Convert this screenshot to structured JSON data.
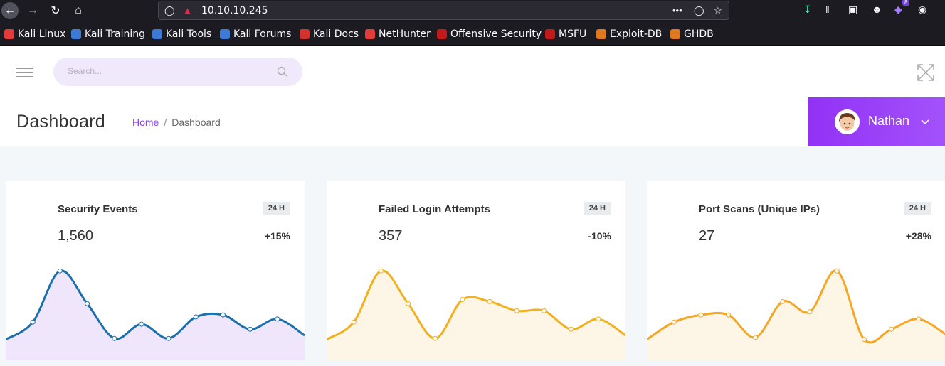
{
  "browser": {
    "url": "10.10.10.245",
    "extension_badge": "8"
  },
  "bookmarks": [
    {
      "label": "Kali Linux",
      "color": "#e33b3b"
    },
    {
      "label": "Kali Training",
      "color": "#3d7ad6"
    },
    {
      "label": "Kali Tools",
      "color": "#3d7ad6"
    },
    {
      "label": "Kali Forums",
      "color": "#3d7ad6"
    },
    {
      "label": "Kali Docs",
      "color": "#d3312d"
    },
    {
      "label": "NetHunter",
      "color": "#e33b3b"
    },
    {
      "label": "Offensive Security",
      "color": "#c21a1a"
    },
    {
      "label": "MSFU",
      "color": "#c21a1a"
    },
    {
      "label": "Exploit-DB",
      "color": "#e0781f"
    },
    {
      "label": "GHDB",
      "color": "#e0781f"
    }
  ],
  "header": {
    "search_placeholder": "Search..."
  },
  "page": {
    "title": "Dashboard",
    "breadcrumb_home": "Home",
    "breadcrumb_sep": "/",
    "breadcrumb_current": "Dashboard"
  },
  "user": {
    "name": "Nathan",
    "accent": "#9a3ef7"
  },
  "cards": [
    {
      "title": "Security Events",
      "badge": "24 H",
      "value": "1,560",
      "change": "+15%"
    },
    {
      "title": "Failed Login Attempts",
      "badge": "24 H",
      "value": "357",
      "change": "-10%"
    },
    {
      "title": "Port Scans (Unique IPs)",
      "badge": "24 H",
      "value": "27",
      "change": "+28%"
    }
  ],
  "chart_data": [
    {
      "type": "area",
      "line_color": "#1b6fad",
      "fill_color": "#efe6fc",
      "values": [
        3,
        20,
        70,
        38,
        4,
        18,
        4,
        25,
        27,
        13,
        23,
        7
      ]
    },
    {
      "type": "area",
      "line_color": "#f2b01e",
      "fill_color": "#fdf6e7",
      "values": [
        3,
        20,
        70,
        38,
        4,
        42,
        40,
        31,
        31,
        13,
        23,
        7
      ]
    },
    {
      "type": "area",
      "line_color": "#f5a623",
      "fill_color": "#fdf6e7",
      "values": [
        3,
        20,
        27,
        27,
        5,
        40,
        30,
        70,
        3,
        13,
        23,
        8
      ]
    }
  ]
}
